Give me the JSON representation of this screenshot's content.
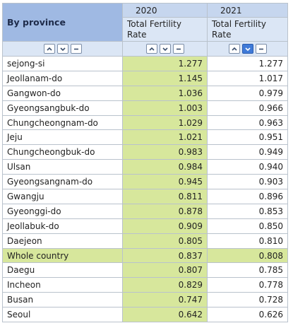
{
  "header": {
    "title": "By province",
    "years": [
      "2020",
      "2021"
    ],
    "measure": [
      "Total Fertility Rate",
      "Total Fertility Rate"
    ]
  },
  "table": {
    "rows": [
      [
        "sejong-si",
        "1.277",
        "1.277"
      ],
      [
        "Jeollanam-do",
        "1.145",
        "1.017"
      ],
      [
        "Gangwon-do",
        "1.036",
        "0.979"
      ],
      [
        "Gyeongsangbuk-do",
        "1.003",
        "0.966"
      ],
      [
        "Chungcheongnam-do",
        "1.029",
        "0.963"
      ],
      [
        "Jeju",
        "1.021",
        "0.951"
      ],
      [
        "Chungcheongbuk-do",
        "0.983",
        "0.949"
      ],
      [
        "Ulsan",
        "0.984",
        "0.940"
      ],
      [
        "Gyeongsangnam-do",
        "0.945",
        "0.903"
      ],
      [
        "Gwangju",
        "0.811",
        "0.896"
      ],
      [
        "Gyeonggi-do",
        "0.878",
        "0.853"
      ],
      [
        "Jeollabuk-do",
        "0.909",
        "0.850"
      ],
      [
        "Daejeon",
        "0.805",
        "0.810"
      ],
      [
        "Whole country",
        "0.837",
        "0.808"
      ],
      [
        "Daegu",
        "0.807",
        "0.785"
      ],
      [
        "Incheon",
        "0.829",
        "0.778"
      ],
      [
        "Busan",
        "0.747",
        "0.728"
      ],
      [
        "Seoul",
        "0.642",
        "0.626"
      ]
    ],
    "highlight_row": "Whole country"
  }
}
